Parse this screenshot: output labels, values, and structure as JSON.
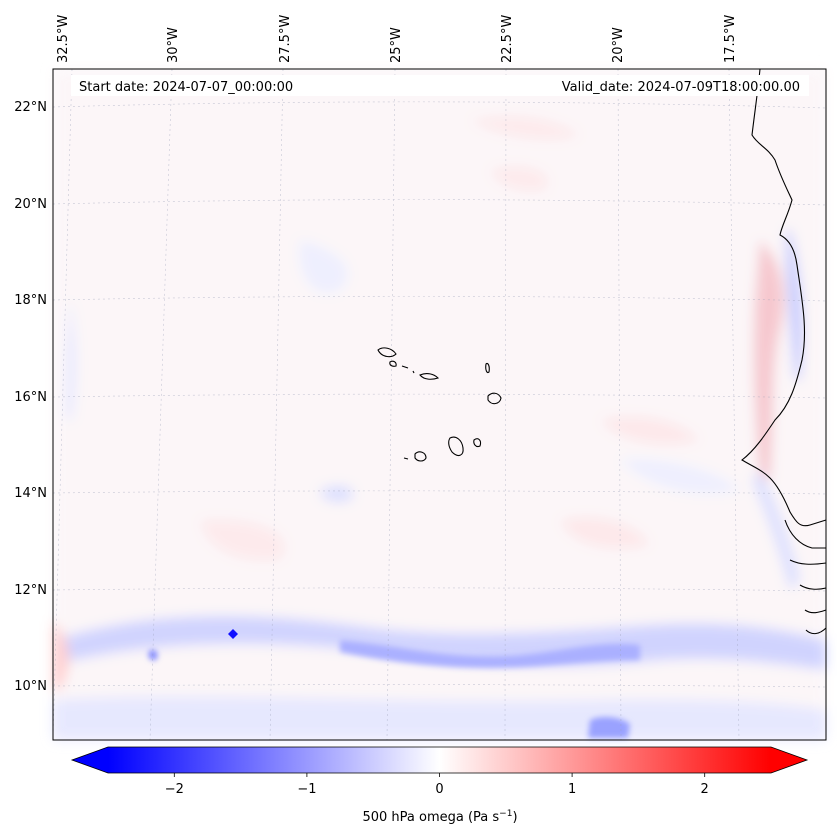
{
  "header": {
    "start_date": "Start date: 2024-07-07_00:00:00",
    "valid_date": "Valid_date: 2024-07-09T18:00:00.00"
  },
  "lon_labels": [
    "32.5°W",
    "30°W",
    "27.5°W",
    "25°W",
    "22.5°W",
    "20°W",
    "17.5°W"
  ],
  "lat_labels": [
    "22°N",
    "20°N",
    "18°N",
    "16°N",
    "14°N",
    "12°N",
    "10°N"
  ],
  "colorbar": {
    "label": "500 hPa omega (Pa s",
    "label_sup": "−1",
    "label_end": ")",
    "ticks": [
      "−2",
      "−1",
      "0",
      "1",
      "2"
    ],
    "tick_values": [
      -2,
      -1,
      0,
      1,
      2
    ],
    "vmin": -2.5,
    "vmax": 2.5,
    "colormap": "bwr",
    "low_color": "#0000ff",
    "mid_color": "#ffffff",
    "high_color": "#ff0000"
  },
  "map": {
    "lon_range": [
      -33,
      -15.5
    ],
    "lat_range": [
      9,
      22.5
    ],
    "gridlines": true,
    "features": [
      "Cape Verde islands",
      "West African coastline"
    ]
  }
}
